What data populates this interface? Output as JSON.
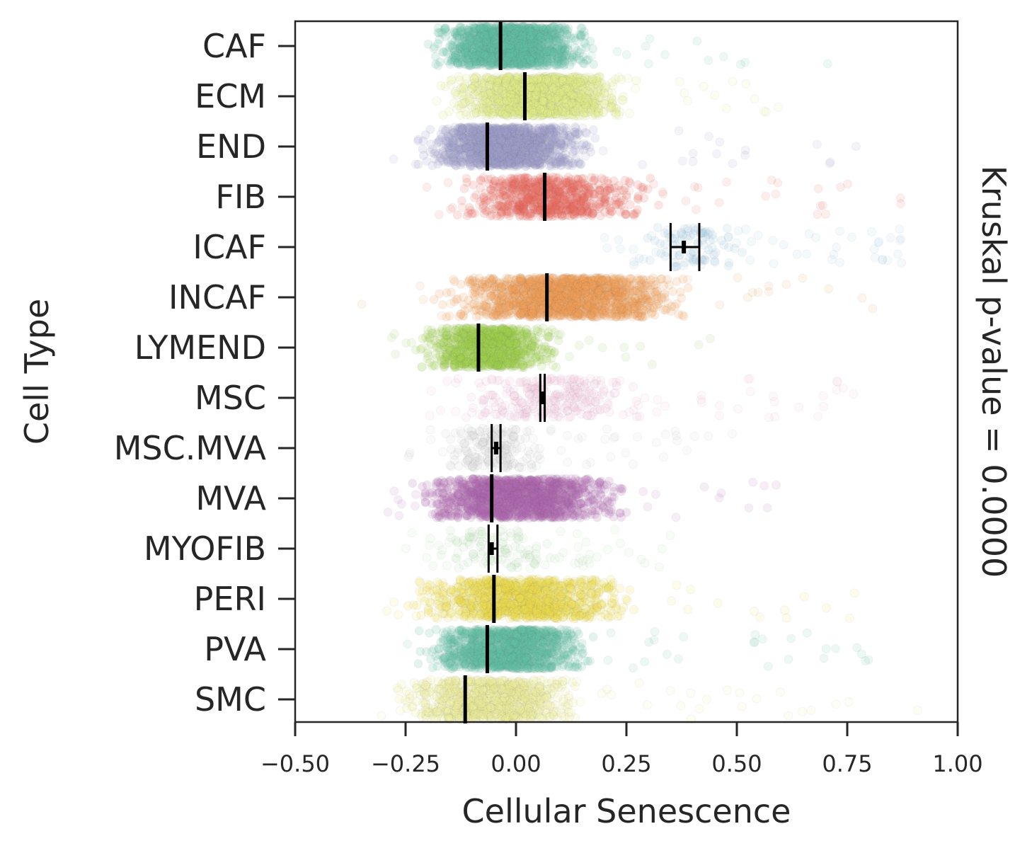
{
  "chart_data": {
    "type": "strip",
    "title": "",
    "xlabel": "Cellular Senescence",
    "ylabel": "Cell Type",
    "side_annotation": "Kruskal p-value = 0.0000",
    "xlim": [
      -0.5,
      1.0
    ],
    "xticks": [
      -0.5,
      -0.25,
      0.0,
      0.25,
      0.5,
      0.75,
      1.0
    ],
    "xtick_labels": [
      "−0.50",
      "−0.25",
      "0.00",
      "0.25",
      "0.50",
      "0.75",
      "1.00"
    ],
    "categories": [
      "CAF",
      "ECM",
      "END",
      "FIB",
      "ICAF",
      "INCAF",
      "LYMEND",
      "MSC",
      "MSC.MVA",
      "MVA",
      "MYOFIB",
      "PERI",
      "PVA",
      "SMC"
    ],
    "colors": [
      "#66c2a5",
      "#e5ec8a",
      "#a09fcb",
      "#f06b5c",
      "#a6cee3",
      "#f2a25a",
      "#9ed14f",
      "#f4c8e0",
      "#d9d9d9",
      "#b16bb3",
      "#c7e9c0",
      "#ecdc4c",
      "#66c2a5",
      "#eded9a"
    ],
    "density": [
      1.0,
      0.9,
      0.9,
      0.45,
      0.05,
      1.0,
      0.6,
      0.15,
      0.1,
      0.9,
      0.05,
      0.7,
      0.8,
      0.6
    ],
    "core_range": [
      [
        -0.22,
        0.2
      ],
      [
        -0.18,
        0.28
      ],
      [
        -0.24,
        0.2
      ],
      [
        -0.17,
        0.33
      ],
      [
        0.26,
        0.55
      ],
      [
        -0.2,
        0.43
      ],
      [
        -0.25,
        0.12
      ],
      [
        -0.17,
        0.32
      ],
      [
        -0.2,
        0.1
      ],
      [
        -0.26,
        0.27
      ],
      [
        -0.2,
        0.1
      ],
      [
        -0.27,
        0.3
      ],
      [
        -0.24,
        0.2
      ],
      [
        -0.3,
        0.18
      ]
    ],
    "full_range": [
      [
        -0.27,
        0.72
      ],
      [
        -0.2,
        0.6
      ],
      [
        -0.3,
        0.77
      ],
      [
        -0.22,
        0.92
      ],
      [
        0.2,
        0.88
      ],
      [
        -0.35,
        0.82
      ],
      [
        -0.3,
        0.45
      ],
      [
        -0.2,
        0.78
      ],
      [
        -0.25,
        0.5
      ],
      [
        -0.3,
        0.59
      ],
      [
        -0.25,
        0.35
      ],
      [
        -0.3,
        0.77
      ],
      [
        -0.26,
        0.8
      ],
      [
        -0.33,
        0.92
      ]
    ],
    "means": [
      -0.035,
      0.02,
      -0.065,
      0.065,
      0.38,
      0.07,
      -0.085,
      0.06,
      -0.045,
      -0.055,
      -0.055,
      -0.05,
      -0.065,
      -0.115
    ],
    "ci_low": [
      -0.037,
      0.018,
      -0.067,
      0.062,
      0.35,
      0.068,
      -0.087,
      0.055,
      -0.055,
      -0.057,
      -0.062,
      -0.052,
      -0.067,
      -0.117
    ],
    "ci_high": [
      -0.033,
      0.022,
      -0.063,
      0.068,
      0.415,
      0.072,
      -0.083,
      0.065,
      -0.035,
      -0.053,
      -0.042,
      -0.048,
      -0.063,
      -0.113
    ]
  }
}
